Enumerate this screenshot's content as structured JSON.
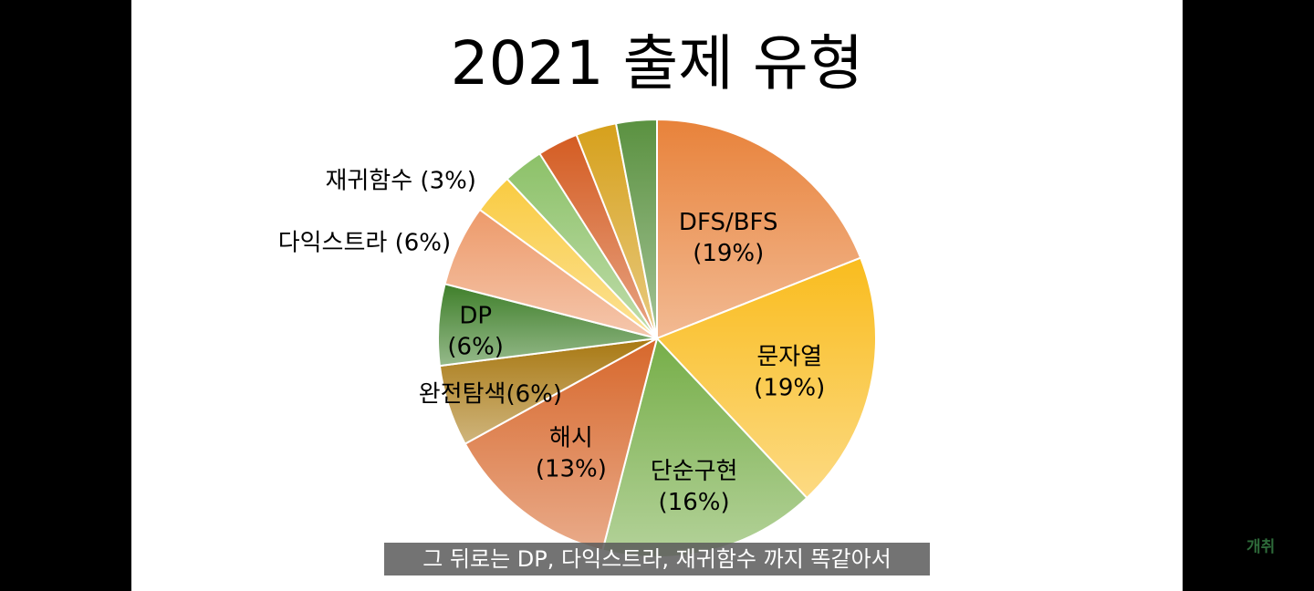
{
  "chart_data": {
    "type": "pie",
    "title": "2021 출제 유형",
    "slices": [
      {
        "label": "DFS/BFS",
        "value_label": "(19%)",
        "value": 19,
        "color": "#E8823A"
      },
      {
        "label": "문자열",
        "value_label": "(19%)",
        "value": 19,
        "color": "#F9BC1E"
      },
      {
        "label": "단순구현",
        "value_label": "(16%)",
        "value": 16,
        "color": "#76AE48"
      },
      {
        "label": "해시",
        "value_label": "(13%)",
        "value": 13,
        "color": "#D7672B"
      },
      {
        "label": "완전탐색",
        "value_label": "(6%)",
        "value": 6,
        "color": "#A87812"
      },
      {
        "label": "DP",
        "value_label": "(6%)",
        "value": 6,
        "color": "#3F7F2A"
      },
      {
        "label": "다익스트라",
        "value_label": "(6%)",
        "value": 6,
        "color": "#ED9A6A"
      },
      {
        "label": "재귀함수",
        "value_label": "(3%)",
        "value": 3,
        "color": "#F9CB41"
      },
      {
        "label": "",
        "value_label": "",
        "value": 3,
        "color": "#8CC168"
      },
      {
        "label": "",
        "value_label": "",
        "value": 3,
        "color": "#D45C22"
      },
      {
        "label": "",
        "value_label": "",
        "value": 3,
        "color": "#D6A01B"
      },
      {
        "label": "",
        "value_label": "",
        "value": 3,
        "color": "#5A9140"
      }
    ]
  },
  "caption": "그 뒤로는 DP, 다익스트라, 재귀함수 까지 똑같아서",
  "watermark": "개취"
}
